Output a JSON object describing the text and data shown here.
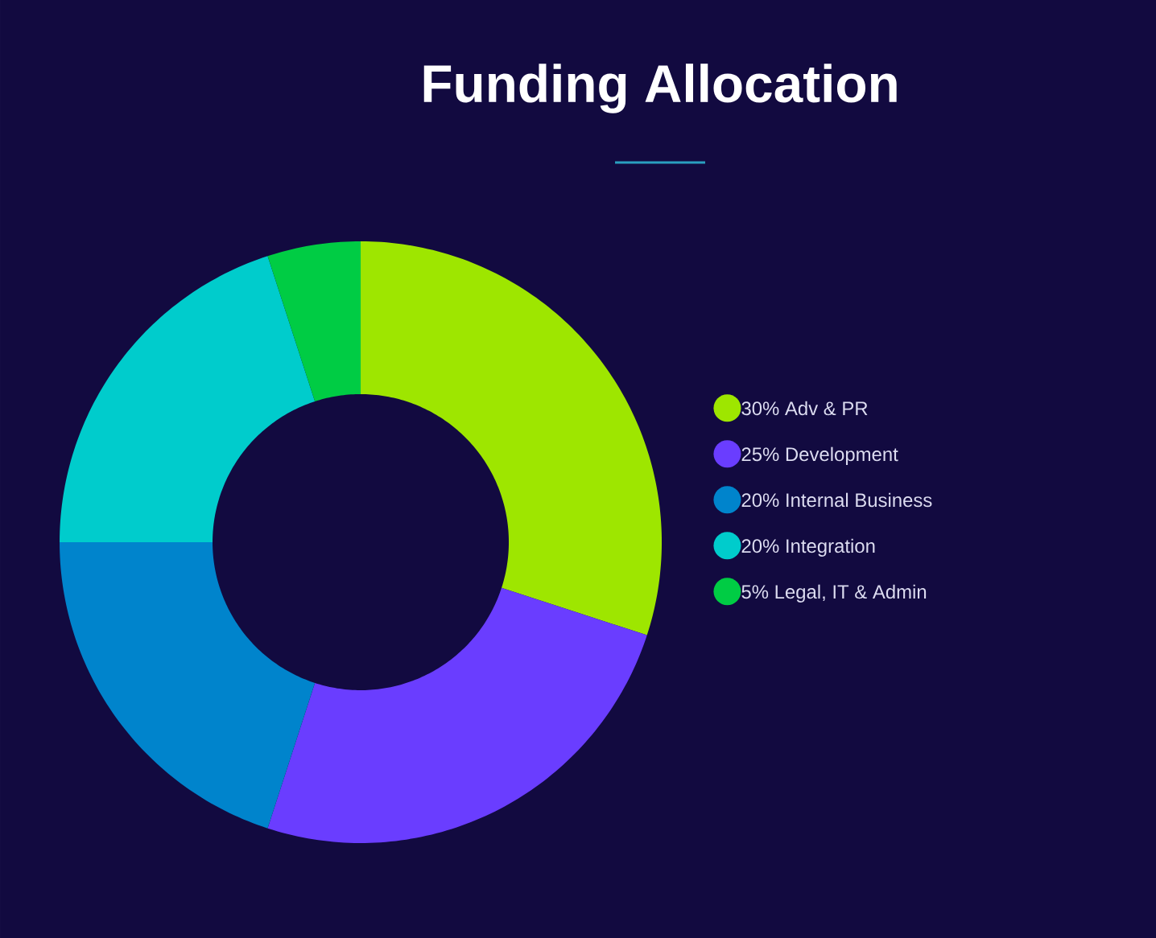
{
  "chart_data": {
    "type": "donut",
    "title": "Funding Allocation",
    "categories": [
      "Adv & PR",
      "Development",
      "Internal Business",
      "Integration",
      "Legal, IT & Admin"
    ],
    "values": [
      30,
      25,
      20,
      20,
      5
    ],
    "value_labels": [
      "30%",
      "25%",
      "20%",
      "20%",
      "5%"
    ],
    "colors": [
      "#9ee600",
      "#6a3dff",
      "#0084cc",
      "#00cccc",
      "#00cc44"
    ],
    "legend": "right"
  }
}
